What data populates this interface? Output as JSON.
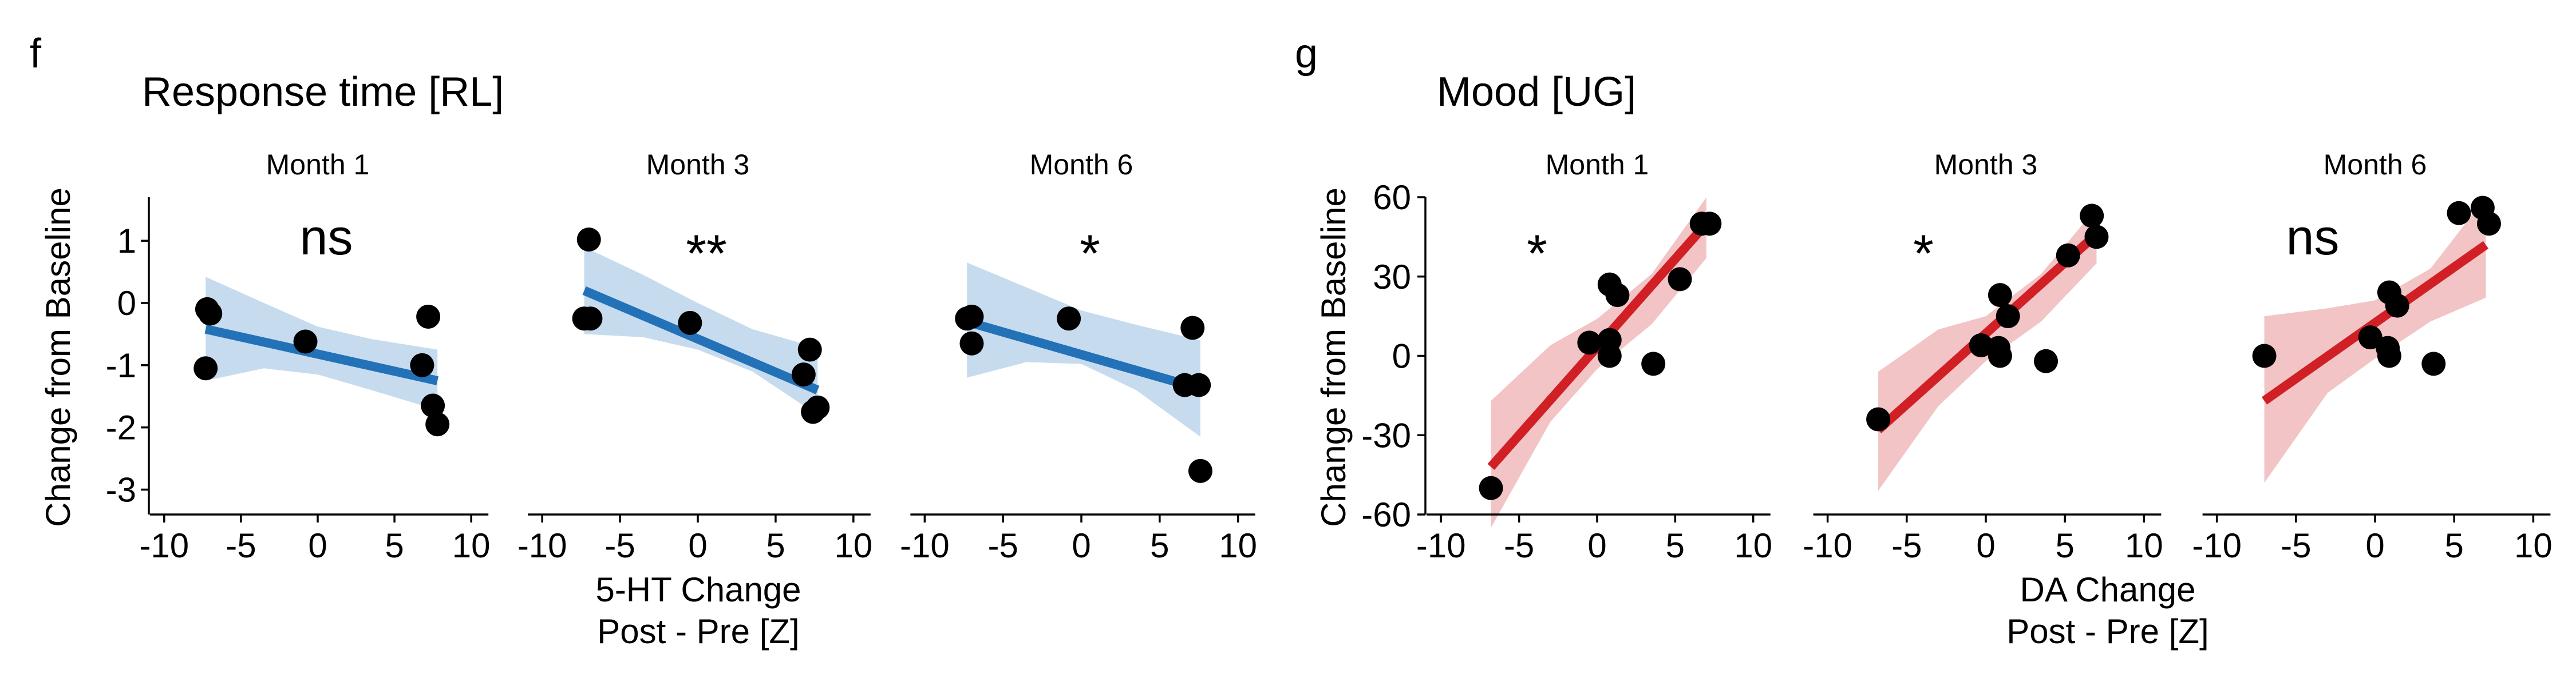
{
  "panels": [
    {
      "letter": "f",
      "title": "Response time [RL]",
      "ylabel": "Change from Baseline",
      "xlabel_line1": "5-HT Change",
      "xlabel_line2": "Post - Pre [Z]",
      "line_color": "#2372b8",
      "band_color": "#c7dbee",
      "facets": [
        "Month 1",
        "Month 3",
        "Month 6"
      ]
    },
    {
      "letter": "g",
      "title": "Mood [UG]",
      "ylabel": "Change from Baseline",
      "xlabel_line1": "DA Change",
      "xlabel_line2": "Post - Pre [Z]",
      "line_color": "#d11f26",
      "band_color": "#f2c4c6",
      "facets": [
        "Month 1",
        "Month 3",
        "Month 6"
      ]
    }
  ],
  "chart_data": [
    {
      "type": "scatter",
      "title": "Response time [RL]",
      "xlabel": "5-HT Change\nPost - Pre [Z]",
      "ylabel": "Change from Baseline",
      "xlim": [
        -11,
        11
      ],
      "ylim": [
        -3.4,
        1.7
      ],
      "xticks": [
        -10,
        -5,
        0,
        5,
        10
      ],
      "yticks": [
        -3,
        -2,
        -1,
        0,
        1
      ],
      "grid": false,
      "regression": "linear fit with confidence band",
      "facets": [
        {
          "name": "Month 1",
          "annotation": "ns",
          "points": [
            [
              -7.2,
              -0.1
            ],
            [
              -7.0,
              -0.17
            ],
            [
              -7.3,
              -1.05
            ],
            [
              -0.8,
              -0.62
            ],
            [
              7.2,
              -0.22
            ],
            [
              6.8,
              -1.0
            ],
            [
              7.5,
              -1.65
            ],
            [
              7.8,
              -1.95
            ]
          ],
          "fit": {
            "x": [
              -7.3,
              7.8
            ],
            "y": [
              -0.42,
              -1.25
            ]
          },
          "band_upper": [
            [
              -7.3,
              0.42
            ],
            [
              -3.5,
              0.0
            ],
            [
              0,
              -0.38
            ],
            [
              3.5,
              -0.58
            ],
            [
              7.8,
              -0.75
            ]
          ],
          "band_lower": [
            [
              -7.3,
              -1.25
            ],
            [
              -3.5,
              -1.05
            ],
            [
              0,
              -1.15
            ],
            [
              3.5,
              -1.4
            ],
            [
              7.8,
              -1.72
            ]
          ]
        },
        {
          "name": "Month 3",
          "annotation": "**",
          "points": [
            [
              -7.0,
              1.02
            ],
            [
              -7.3,
              -0.25
            ],
            [
              -6.9,
              -0.25
            ],
            [
              -0.5,
              -0.32
            ],
            [
              7.2,
              -0.75
            ],
            [
              6.8,
              -1.15
            ],
            [
              7.4,
              -1.75
            ],
            [
              7.7,
              -1.68
            ]
          ],
          "fit": {
            "x": [
              -7.3,
              7.7
            ],
            "y": [
              0.2,
              -1.4
            ]
          },
          "band_upper": [
            [
              -7.3,
              0.9
            ],
            [
              -3.5,
              0.45
            ],
            [
              0,
              0.0
            ],
            [
              3.5,
              -0.42
            ],
            [
              7.7,
              -0.72
            ]
          ],
          "band_lower": [
            [
              -7.3,
              -0.5
            ],
            [
              -3.5,
              -0.55
            ],
            [
              0,
              -0.75
            ],
            [
              3.5,
              -1.1
            ],
            [
              7.7,
              -1.8
            ]
          ]
        },
        {
          "name": "Month 6",
          "annotation": "*",
          "points": [
            [
              -7.0,
              -0.22
            ],
            [
              -7.3,
              -0.25
            ],
            [
              -7.0,
              -0.65
            ],
            [
              -0.8,
              -0.25
            ],
            [
              7.1,
              -0.4
            ],
            [
              6.6,
              -1.32
            ],
            [
              7.5,
              -1.32
            ],
            [
              7.6,
              -2.7
            ]
          ],
          "fit": {
            "x": [
              -7.3,
              7.6
            ],
            "y": [
              -0.3,
              -1.38
            ]
          },
          "band_upper": [
            [
              -7.3,
              0.65
            ],
            [
              -3.5,
              0.25
            ],
            [
              0,
              -0.12
            ],
            [
              3.5,
              -0.35
            ],
            [
              7.6,
              -0.6
            ]
          ],
          "band_lower": [
            [
              -7.3,
              -1.2
            ],
            [
              -3.5,
              -0.95
            ],
            [
              0,
              -0.98
            ],
            [
              3.5,
              -1.4
            ],
            [
              7.6,
              -2.15
            ]
          ]
        }
      ]
    },
    {
      "type": "scatter",
      "title": "Mood [UG]",
      "xlabel": "DA Change\nPost - Pre [Z]",
      "ylabel": "Change from Baseline",
      "xlim": [
        -11,
        11
      ],
      "ylim": [
        -60,
        60
      ],
      "xticks": [
        -10,
        -5,
        0,
        5,
        10
      ],
      "yticks": [
        -60,
        -30,
        0,
        30,
        60
      ],
      "grid": false,
      "regression": "linear fit with confidence band",
      "facets": [
        {
          "name": "Month 1",
          "annotation": "*",
          "points": [
            [
              -6.8,
              -50
            ],
            [
              -0.5,
              5
            ],
            [
              0.8,
              27
            ],
            [
              1.3,
              23
            ],
            [
              0.8,
              6
            ],
            [
              0.8,
              0
            ],
            [
              3.6,
              -3
            ],
            [
              5.3,
              29
            ],
            [
              6.7,
              50
            ],
            [
              7.2,
              50
            ]
          ],
          "fit": {
            "x": [
              -6.8,
              7.0
            ],
            "y": [
              -42,
              50
            ]
          },
          "band_upper": [
            [
              -6.8,
              -17
            ],
            [
              -3.0,
              4
            ],
            [
              0,
              14
            ],
            [
              3.5,
              31
            ],
            [
              7.0,
              60
            ]
          ],
          "band_lower": [
            [
              -6.8,
              -65
            ],
            [
              -3.0,
              -25
            ],
            [
              0,
              -5
            ],
            [
              3.5,
              12
            ],
            [
              7.0,
              37
            ]
          ]
        },
        {
          "name": "Month 3",
          "annotation": "*",
          "points": [
            [
              -6.8,
              -24
            ],
            [
              -0.3,
              4
            ],
            [
              0.9,
              23
            ],
            [
              1.4,
              15
            ],
            [
              0.8,
              3
            ],
            [
              0.9,
              0
            ],
            [
              3.8,
              -2
            ],
            [
              5.2,
              38
            ],
            [
              6.7,
              53
            ],
            [
              7.0,
              45
            ]
          ],
          "fit": {
            "x": [
              -6.8,
              7.0
            ],
            "y": [
              -28,
              46
            ]
          },
          "band_upper": [
            [
              -6.8,
              -6
            ],
            [
              -3.0,
              10
            ],
            [
              0,
              15
            ],
            [
              3.5,
              31
            ],
            [
              7.0,
              56
            ]
          ],
          "band_lower": [
            [
              -6.8,
              -51
            ],
            [
              -3.0,
              -19
            ],
            [
              0,
              -2
            ],
            [
              3.5,
              13
            ],
            [
              7.0,
              35
            ]
          ]
        },
        {
          "name": "Month 6",
          "annotation": "ns",
          "points": [
            [
              -7.0,
              0
            ],
            [
              -0.3,
              7
            ],
            [
              0.9,
              24
            ],
            [
              1.4,
              19
            ],
            [
              0.8,
              3
            ],
            [
              0.9,
              0
            ],
            [
              3.7,
              -3
            ],
            [
              5.3,
              54
            ],
            [
              6.8,
              56
            ],
            [
              7.2,
              50
            ]
          ],
          "fit": {
            "x": [
              -7.0,
              7.0
            ],
            "y": [
              -17,
              42
            ]
          },
          "band_upper": [
            [
              -7.0,
              15
            ],
            [
              -3.0,
              18
            ],
            [
              0,
              21
            ],
            [
              3.5,
              33
            ],
            [
              7.0,
              60
            ]
          ],
          "band_lower": [
            [
              -7.0,
              -48
            ],
            [
              -3.0,
              -14
            ],
            [
              0,
              -1
            ],
            [
              3.5,
              13
            ],
            [
              7.0,
              22
            ]
          ]
        }
      ]
    }
  ]
}
